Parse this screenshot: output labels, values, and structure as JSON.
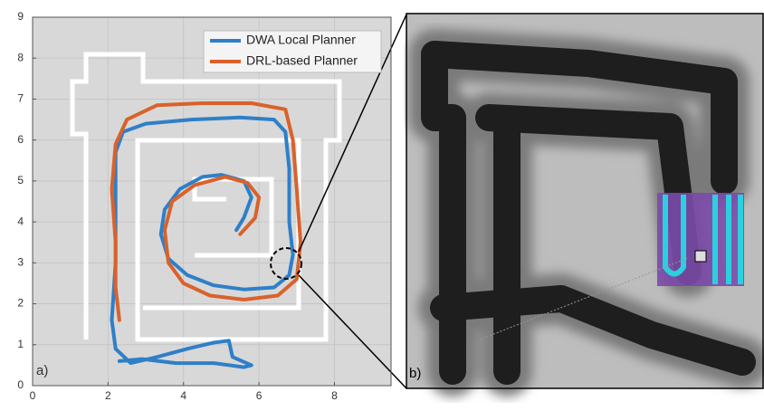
{
  "chart_data": {
    "type": "line",
    "panel_label": "a)",
    "xlim": [
      0,
      9.5
    ],
    "xticks": [
      0,
      2,
      4,
      6,
      8
    ],
    "ylim": [
      0,
      9
    ],
    "yticks": [
      0,
      1,
      2,
      3,
      4,
      5,
      6,
      7,
      8,
      9
    ],
    "grid": true,
    "legend": "upper right",
    "series": [
      {
        "name": "DWA Local Planner",
        "color": "#2f7fc8",
        "x": [
          5.4,
          5.6,
          5.8,
          5.6,
          5.0,
          4.5,
          3.9,
          3.5,
          3.4,
          3.6,
          4.1,
          4.8,
          5.6,
          6.4,
          6.8,
          6.9,
          6.8,
          6.8,
          6.7,
          6.4,
          5.5,
          4.2,
          3.0,
          2.4,
          2.2,
          2.2,
          2.2,
          2.1,
          2.2,
          2.6,
          3.3,
          4.1,
          4.8,
          5.2,
          5.3,
          5.8,
          5.6,
          4.8,
          3.8,
          2.9,
          2.3
        ],
        "values": [
          3.8,
          4.1,
          4.6,
          5.0,
          5.15,
          5.1,
          4.8,
          4.3,
          3.7,
          3.1,
          2.7,
          2.45,
          2.35,
          2.4,
          2.7,
          3.2,
          4.0,
          5.3,
          6.2,
          6.5,
          6.55,
          6.5,
          6.4,
          6.2,
          5.7,
          4.5,
          3.0,
          1.6,
          0.9,
          0.55,
          0.7,
          0.9,
          1.05,
          1.1,
          0.7,
          0.5,
          0.45,
          0.55,
          0.55,
          0.65,
          0.6
        ]
      },
      {
        "name": "DRL-based Planner",
        "color": "#d9622b",
        "x": [
          5.5,
          5.9,
          6.0,
          5.7,
          5.1,
          4.3,
          3.7,
          3.5,
          3.6,
          4.0,
          4.7,
          5.6,
          6.5,
          7.0,
          7.1,
          7.0,
          6.9,
          6.7,
          5.8,
          4.5,
          3.3,
          2.5,
          2.2,
          2.1,
          2.2,
          2.2,
          2.3
        ],
        "values": [
          3.7,
          4.1,
          4.6,
          4.95,
          5.1,
          4.9,
          4.5,
          3.8,
          3.0,
          2.5,
          2.2,
          2.1,
          2.2,
          2.6,
          3.5,
          4.8,
          6.0,
          6.75,
          6.9,
          6.9,
          6.85,
          6.5,
          5.9,
          4.8,
          3.5,
          2.4,
          1.6
        ]
      }
    ]
  },
  "panels": {
    "b": {
      "label": "b)"
    }
  }
}
